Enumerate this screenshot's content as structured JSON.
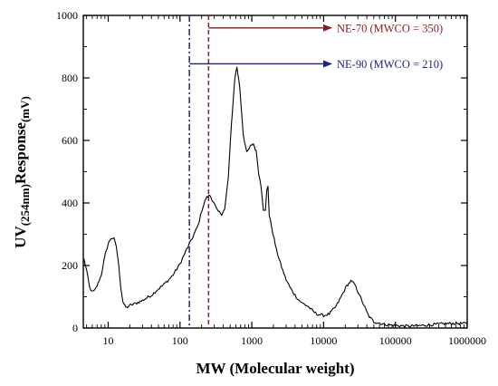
{
  "chart_data": {
    "type": "line",
    "xscale": "log",
    "xlim": [
      4.5,
      1000000
    ],
    "ylim": [
      0,
      1000
    ],
    "xlabel": "MW (Molecular weight)",
    "ylabel": {
      "pre": "UV",
      "sub": "(254nm)",
      "post": "Response",
      "sub2": "(mV)"
    },
    "x_ticks": [
      {
        "value": 10,
        "label": "10"
      },
      {
        "value": 100,
        "label": "100"
      },
      {
        "value": 1000,
        "label": "1000"
      },
      {
        "value": 10000,
        "label": "10000"
      },
      {
        "value": 100000,
        "label": "100000"
      },
      {
        "value": 1000000,
        "label": "1000000"
      }
    ],
    "y_ticks": [
      {
        "value": 0,
        "label": "0"
      },
      {
        "value": 200,
        "label": "200"
      },
      {
        "value": 400,
        "label": "400"
      },
      {
        "value": 600,
        "label": "600"
      },
      {
        "value": 800,
        "label": "800"
      },
      {
        "value": 1000,
        "label": "1000"
      }
    ],
    "series": [
      {
        "color": "#000000",
        "points": [
          [
            4.6,
            220
          ],
          [
            5.0,
            185
          ],
          [
            5.5,
            130
          ],
          [
            6.0,
            115
          ],
          [
            6.5,
            120
          ],
          [
            7.0,
            135
          ],
          [
            8.0,
            170
          ],
          [
            9.0,
            230
          ],
          [
            10.0,
            270
          ],
          [
            11.0,
            288
          ],
          [
            12.0,
            285
          ],
          [
            13.0,
            260
          ],
          [
            14.0,
            200
          ],
          [
            15.0,
            130
          ],
          [
            16.0,
            85
          ],
          [
            17.0,
            70
          ],
          [
            18.0,
            65
          ],
          [
            20.0,
            72
          ],
          [
            25.0,
            80
          ],
          [
            30.0,
            88
          ],
          [
            40.0,
            105
          ],
          [
            50.0,
            125
          ],
          [
            60.0,
            140
          ],
          [
            70.0,
            155
          ],
          [
            80.0,
            170
          ],
          [
            100.0,
            205
          ],
          [
            120.0,
            245
          ],
          [
            150.0,
            290
          ],
          [
            180.0,
            330
          ],
          [
            200.0,
            375
          ],
          [
            230.0,
            415
          ],
          [
            260.0,
            425
          ],
          [
            290.0,
            405
          ],
          [
            330.0,
            375
          ],
          [
            380.0,
            365
          ],
          [
            420.0,
            380
          ],
          [
            470.0,
            480
          ],
          [
            520.0,
            650
          ],
          [
            580.0,
            800
          ],
          [
            620.0,
            835
          ],
          [
            680.0,
            770
          ],
          [
            760.0,
            620
          ],
          [
            850.0,
            560
          ],
          [
            950.0,
            580
          ],
          [
            1050.0,
            590
          ],
          [
            1150.0,
            565
          ],
          [
            1250.0,
            495
          ],
          [
            1350.0,
            450
          ],
          [
            1450.0,
            380
          ],
          [
            1550.0,
            380
          ],
          [
            1620.0,
            440
          ],
          [
            1680.0,
            455
          ],
          [
            1750.0,
            360
          ],
          [
            1900.0,
            320
          ],
          [
            2200.0,
            250
          ],
          [
            2600.0,
            195
          ],
          [
            3000.0,
            155
          ],
          [
            3500.0,
            125
          ],
          [
            4000.0,
            105
          ],
          [
            4500.0,
            90
          ],
          [
            5000.0,
            80
          ],
          [
            6000.0,
            70
          ],
          [
            7000.0,
            55
          ],
          [
            8000.0,
            45
          ],
          [
            10000.0,
            40
          ],
          [
            12000.0,
            45
          ],
          [
            15000.0,
            70
          ],
          [
            18000.0,
            105
          ],
          [
            21000.0,
            135
          ],
          [
            24000.0,
            150
          ],
          [
            27000.0,
            140
          ],
          [
            31000.0,
            110
          ],
          [
            36000.0,
            75
          ],
          [
            42000.0,
            40
          ],
          [
            50000.0,
            20
          ],
          [
            70000.0,
            12
          ],
          [
            100000.0,
            8
          ],
          [
            150000.0,
            6
          ],
          [
            200000.0,
            7
          ],
          [
            300000.0,
            10
          ],
          [
            500000.0,
            14
          ],
          [
            700000.0,
            15
          ],
          [
            1000000.0,
            14
          ]
        ]
      }
    ],
    "annotations": [
      {
        "x": 250,
        "label": "NE-70 (MWCO = 350)",
        "arrow_y": 960,
        "color": "#8b1a1a",
        "style": "dashed"
      },
      {
        "x": 135,
        "label": "NE-90 (MWCO = 210)",
        "arrow_y": 845,
        "color": "#1a237e",
        "style": "dashdot"
      }
    ],
    "grid": false,
    "legend": "none"
  }
}
